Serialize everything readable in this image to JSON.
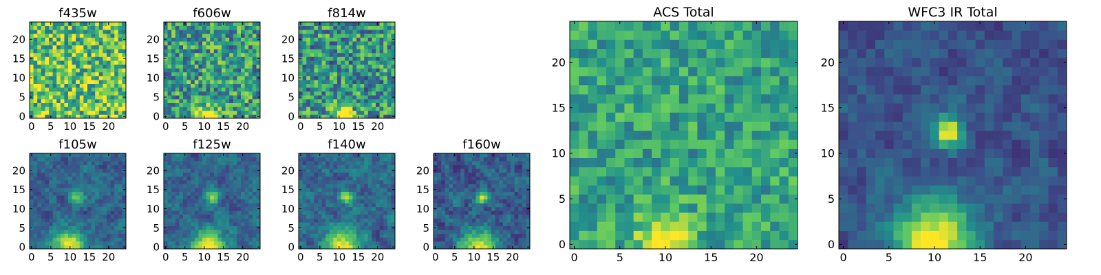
{
  "figure": {
    "cmap_stops": [
      "#440154",
      "#3b528b",
      "#21918c",
      "#5ec962",
      "#fde725"
    ]
  },
  "chart_data": [
    {
      "id": "f435w",
      "type": "heatmap",
      "title": "f435w",
      "grid_size": 25,
      "xlim": [
        0,
        24
      ],
      "ylim": [
        0,
        24
      ],
      "x_ticks": [
        "0",
        "5",
        "10",
        "15",
        "20"
      ],
      "y_ticks": [
        "0",
        "5",
        "10",
        "15",
        "20"
      ],
      "pattern": "noise",
      "base": 0.72,
      "noise": 0.35,
      "sources": []
    },
    {
      "id": "f606w",
      "type": "heatmap",
      "title": "f606w",
      "grid_size": 25,
      "xlim": [
        0,
        24
      ],
      "ylim": [
        0,
        24
      ],
      "x_ticks": [
        "0",
        "5",
        "10",
        "15",
        "20"
      ],
      "y_ticks": [
        "0",
        "5",
        "10",
        "15",
        "20"
      ],
      "pattern": "noise",
      "base": 0.55,
      "noise": 0.32,
      "sources": [
        {
          "x": 10,
          "y": 0,
          "sigma": 2.0,
          "amp": 0.6
        }
      ]
    },
    {
      "id": "f814w",
      "type": "heatmap",
      "title": "f814w",
      "grid_size": 25,
      "xlim": [
        0,
        24
      ],
      "ylim": [
        0,
        24
      ],
      "x_ticks": [
        "0",
        "5",
        "10",
        "15",
        "20"
      ],
      "y_ticks": [
        "0",
        "5",
        "10",
        "15",
        "20"
      ],
      "pattern": "noise",
      "base": 0.52,
      "noise": 0.32,
      "sources": [
        {
          "x": 11,
          "y": 0,
          "sigma": 2.0,
          "amp": 0.55
        }
      ]
    },
    {
      "id": "f105w",
      "type": "heatmap",
      "title": "f105w",
      "grid_size": 25,
      "xlim": [
        0,
        24
      ],
      "ylim": [
        0,
        24
      ],
      "x_ticks": [
        "0",
        "5",
        "10",
        "15",
        "20"
      ],
      "y_ticks": [
        "0",
        "5",
        "10",
        "15",
        "20"
      ],
      "pattern": "smooth",
      "base": 0.32,
      "noise": 0.22,
      "sources": [
        {
          "x": 10,
          "y": 0,
          "sigma": 3.0,
          "amp": 0.7
        },
        {
          "x": 12,
          "y": 13,
          "sigma": 1.3,
          "amp": 0.45
        }
      ]
    },
    {
      "id": "f125w",
      "type": "heatmap",
      "title": "f125w",
      "grid_size": 25,
      "xlim": [
        0,
        24
      ],
      "ylim": [
        0,
        24
      ],
      "x_ticks": [
        "0",
        "5",
        "10",
        "15",
        "20"
      ],
      "y_ticks": [
        "0",
        "5",
        "10",
        "15",
        "20"
      ],
      "pattern": "smooth",
      "base": 0.33,
      "noise": 0.22,
      "sources": [
        {
          "x": 11,
          "y": 0,
          "sigma": 3.0,
          "amp": 0.7
        },
        {
          "x": 12,
          "y": 13,
          "sigma": 1.2,
          "amp": 0.55
        }
      ]
    },
    {
      "id": "f140w",
      "type": "heatmap",
      "title": "f140w",
      "grid_size": 25,
      "xlim": [
        0,
        24
      ],
      "ylim": [
        0,
        24
      ],
      "x_ticks": [
        "0",
        "5",
        "10",
        "15",
        "20"
      ],
      "y_ticks": [
        "0",
        "5",
        "10",
        "15",
        "20"
      ],
      "pattern": "smooth",
      "base": 0.34,
      "noise": 0.24,
      "sources": [
        {
          "x": 11,
          "y": 0,
          "sigma": 3.0,
          "amp": 0.7
        },
        {
          "x": 12,
          "y": 13,
          "sigma": 1.2,
          "amp": 0.6
        }
      ]
    },
    {
      "id": "f160w",
      "type": "heatmap",
      "title": "f160w",
      "grid_size": 25,
      "xlim": [
        0,
        24
      ],
      "ylim": [
        0,
        24
      ],
      "x_ticks": [
        "0",
        "5",
        "10",
        "15",
        "20"
      ],
      "y_ticks": [
        "0",
        "5",
        "10",
        "15",
        "20"
      ],
      "pattern": "smooth",
      "base": 0.3,
      "noise": 0.25,
      "sources": [
        {
          "x": 11,
          "y": 0,
          "sigma": 3.0,
          "amp": 0.7
        },
        {
          "x": 12,
          "y": 13,
          "sigma": 1.1,
          "amp": 0.7
        }
      ]
    },
    {
      "id": "acs-total",
      "type": "heatmap",
      "title": "ACS Total",
      "grid_size": 25,
      "xlim": [
        0,
        24
      ],
      "ylim": [
        0,
        24
      ],
      "x_ticks": [
        "0",
        "5",
        "10",
        "15",
        "20"
      ],
      "y_ticks": [
        "0",
        "5",
        "10",
        "15",
        "20"
      ],
      "pattern": "noise",
      "base": 0.58,
      "noise": 0.2,
      "sources": [
        {
          "x": 10,
          "y": 0,
          "sigma": 2.3,
          "amp": 0.45
        }
      ]
    },
    {
      "id": "wfc3-ir-total",
      "type": "heatmap",
      "title": "WFC3 IR Total",
      "grid_size": 25,
      "xlim": [
        0,
        24
      ],
      "ylim": [
        0,
        24
      ],
      "x_ticks": [
        "0",
        "5",
        "10",
        "15",
        "20"
      ],
      "y_ticks": [
        "0",
        "5",
        "10",
        "15",
        "20"
      ],
      "pattern": "smooth",
      "base": 0.27,
      "noise": 0.18,
      "sources": [
        {
          "x": 10,
          "y": 0,
          "sigma": 3.2,
          "amp": 0.75
        },
        {
          "x": 11.5,
          "y": 12.5,
          "sigma": 1.2,
          "amp": 0.72
        }
      ]
    }
  ]
}
